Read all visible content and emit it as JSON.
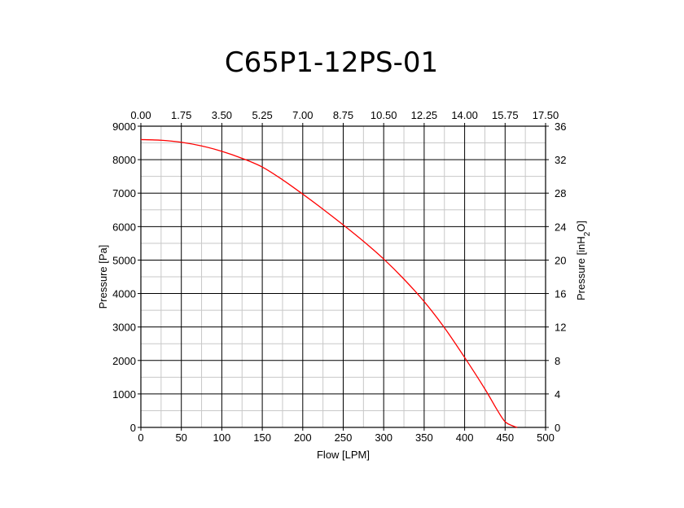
{
  "chart_data": {
    "type": "line",
    "title": "C65P1-12PS-01",
    "xlabel": "Flow [LPM]",
    "ylabel": "Pressure [Pa]",
    "y2label_main": "Pressure [inH",
    "y2label_sub": "2",
    "y2label_end": "O]",
    "xlim": [
      0,
      500
    ],
    "ylim": [
      0,
      9000
    ],
    "x2lim": [
      0,
      17.5
    ],
    "y2lim": [
      0,
      36
    ],
    "x_ticks": [
      "0",
      "50",
      "100",
      "150",
      "200",
      "250",
      "300",
      "350",
      "400",
      "450",
      "500"
    ],
    "y_ticks": [
      "0",
      "1000",
      "2000",
      "3000",
      "4000",
      "5000",
      "6000",
      "7000",
      "8000",
      "9000"
    ],
    "x2_ticks": [
      "0.00",
      "1.75",
      "3.50",
      "5.25",
      "7.00",
      "8.75",
      "10.50",
      "12.25",
      "14.00",
      "15.75",
      "17.50"
    ],
    "y2_ticks": [
      "0",
      "4",
      "8",
      "12",
      "16",
      "20",
      "24",
      "28",
      "32",
      "36"
    ],
    "grid": true,
    "series": [
      {
        "color": "#ff0000",
        "x": [
          0,
          25,
          50,
          75,
          100,
          125,
          150,
          175,
          200,
          225,
          250,
          275,
          300,
          325,
          350,
          375,
          400,
          425,
          440,
          450,
          460,
          465
        ],
        "y": [
          8600,
          8580,
          8520,
          8410,
          8250,
          8040,
          7780,
          7400,
          6970,
          6520,
          6050,
          5560,
          5030,
          4430,
          3760,
          2980,
          2090,
          1150,
          530,
          170,
          40,
          0
        ]
      }
    ]
  }
}
